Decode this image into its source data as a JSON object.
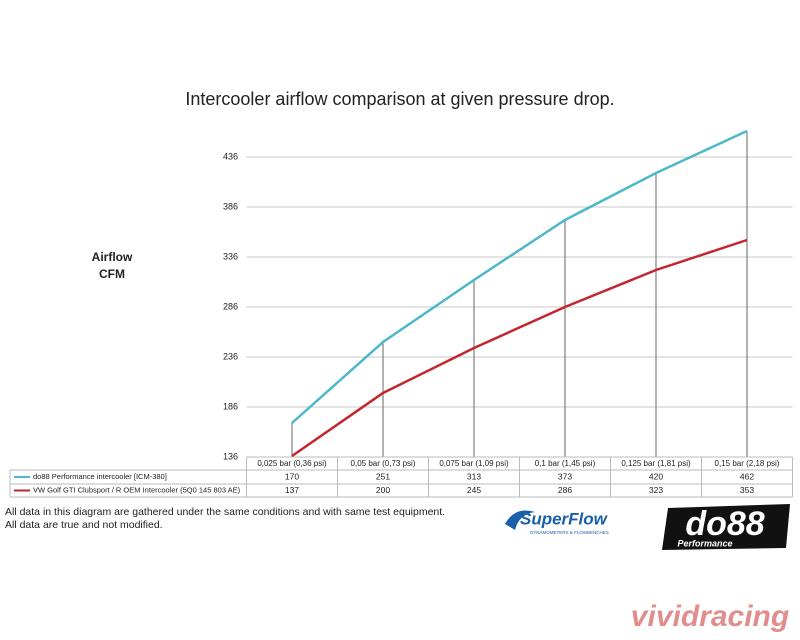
{
  "chart_data": {
    "type": "line",
    "title": "Intercooler airflow comparison at given pressure drop.",
    "y_label": [
      "Airflow",
      "CFM"
    ],
    "categories": [
      "0,025 bar (0,36 psi)",
      "0,05 bar (0,73 psi)",
      "0,075 bar (1,09 psi)",
      "0,1 bar (1,45 psi)",
      "0,125 bar (1,81 psi)",
      "0,15 bar (2,18 psi)"
    ],
    "series": [
      {
        "name": "do88 Performance intercooler [ICM-380]",
        "color": "#4cb8c9",
        "values": [
          170,
          251,
          313,
          373,
          420,
          462
        ]
      },
      {
        "name": "VW Golf GTI Clubsport / R OEM Intercooler (5Q0 145 803 AE)",
        "color": "#c1272d",
        "values": [
          137,
          200,
          245,
          286,
          323,
          353
        ]
      }
    ],
    "ylim": [
      136,
      470
    ],
    "yticks": [
      136,
      186,
      236,
      286,
      336,
      386,
      436
    ],
    "grid": true,
    "drop_lines": true
  },
  "notes": [
    "All data in this diagram are gathered under the same conditions and with same test equipment.",
    "All data are true and not modified."
  ],
  "logos": {
    "superflow": "SuperFlow",
    "superflow_tagline": "DYNAMOMETERS & FLOWBENCHES",
    "do88": "do88",
    "do88_sub": "Performance",
    "watermark": "vividracing"
  }
}
